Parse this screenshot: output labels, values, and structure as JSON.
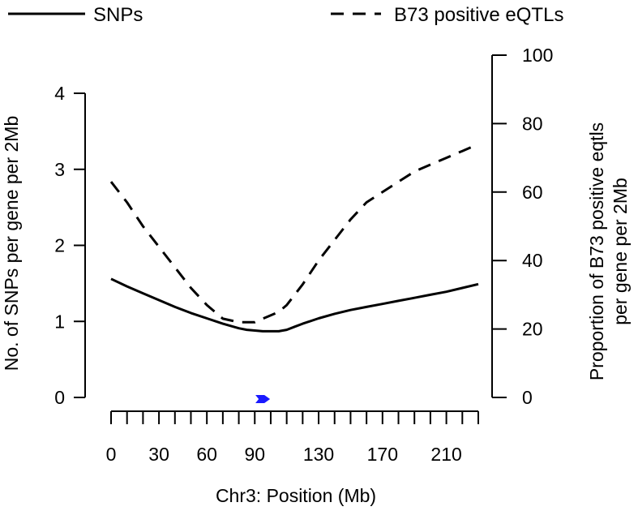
{
  "chart_data": {
    "type": "line",
    "xlabel": "Chr3: Position (Mb)",
    "ylabel_left": "No. of SNPs per gene per 2Mb",
    "ylabel_right_line1": "Proportion of B73 positive eqtls",
    "ylabel_right_line2": "per gene per 2Mb",
    "xlim": [
      0,
      230
    ],
    "ylim_left": [
      0,
      4
    ],
    "ylim_right": [
      0,
      100
    ],
    "x_ticks": [
      0,
      10,
      20,
      30,
      40,
      50,
      60,
      70,
      80,
      90,
      100,
      110,
      120,
      130,
      140,
      150,
      160,
      170,
      180,
      190,
      200,
      210,
      220,
      230
    ],
    "x_tick_labels": [
      {
        "value": 0,
        "label": "0"
      },
      {
        "value": 30,
        "label": "30"
      },
      {
        "value": 60,
        "label": "60"
      },
      {
        "value": 90,
        "label": "90"
      },
      {
        "value": 130,
        "label": "130"
      },
      {
        "value": 170,
        "label": "170"
      },
      {
        "value": 210,
        "label": "210"
      }
    ],
    "y_left_ticks": [
      {
        "value": 0,
        "label": "0"
      },
      {
        "value": 1,
        "label": "1"
      },
      {
        "value": 2,
        "label": "2"
      },
      {
        "value": 3,
        "label": "3"
      },
      {
        "value": 4,
        "label": "4"
      }
    ],
    "y_right_ticks": [
      {
        "value": 0,
        "label": "0"
      },
      {
        "value": 20,
        "label": "20"
      },
      {
        "value": 40,
        "label": "40"
      },
      {
        "value": 60,
        "label": "60"
      },
      {
        "value": 80,
        "label": "80"
      },
      {
        "value": 100,
        "label": "100"
      }
    ],
    "series": [
      {
        "name": "SNPs",
        "axis": "left",
        "style": "solid",
        "x": [
          0,
          10,
          20,
          30,
          40,
          50,
          60,
          70,
          80,
          85,
          90,
          95,
          100,
          105,
          110,
          115,
          120,
          130,
          140,
          150,
          160,
          170,
          180,
          190,
          200,
          210,
          220,
          230
        ],
        "y": [
          1.56,
          1.46,
          1.37,
          1.28,
          1.19,
          1.11,
          1.04,
          0.97,
          0.91,
          0.89,
          0.88,
          0.87,
          0.87,
          0.87,
          0.89,
          0.93,
          0.97,
          1.04,
          1.1,
          1.15,
          1.19,
          1.23,
          1.27,
          1.31,
          1.35,
          1.39,
          1.44,
          1.49
        ]
      },
      {
        "name": "B73 positive eQTLs",
        "axis": "right",
        "style": "dashed",
        "x": [
          0,
          10,
          20,
          30,
          40,
          50,
          60,
          70,
          80,
          85,
          90,
          95,
          100,
          105,
          110,
          115,
          120,
          130,
          140,
          150,
          160,
          170,
          180,
          190,
          200,
          210,
          220,
          230
        ],
        "y": [
          63,
          57,
          50,
          44,
          38,
          32,
          27,
          23,
          22,
          22,
          22,
          23,
          24,
          25,
          27,
          30,
          33,
          40,
          46,
          52,
          57,
          60,
          63,
          66,
          68,
          70,
          72,
          74
        ]
      }
    ],
    "marker": {
      "x": 95,
      "y": 0,
      "color": "#1a1aff"
    },
    "legend": {
      "position": "top",
      "entries": [
        {
          "label": "SNPs",
          "style": "solid"
        },
        {
          "label": "B73 positive eQTLs",
          "style": "dashed"
        }
      ]
    }
  }
}
